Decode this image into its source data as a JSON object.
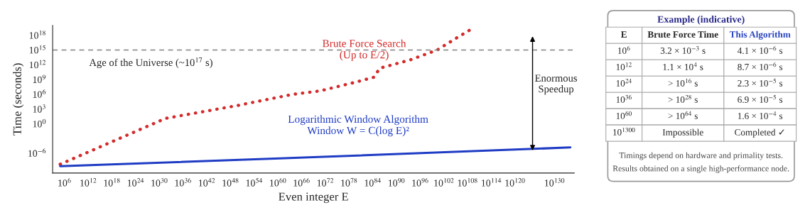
{
  "chart_data": [
    {
      "type": "line",
      "xlabel": "Even integer E",
      "ylabel": "Time (seconds)",
      "log": "xy",
      "grid": false,
      "legend": false,
      "line_style": "solid",
      "marker": "none",
      "xlim": [
        1000.0,
        1e+135
      ],
      "ylim": [
        1e-10,
        1e+20
      ],
      "xticks": [
        {
          "value": 1000000.0,
          "label": "10$^{6}$"
        },
        {
          "value": 1000000000000.0,
          "label": "10$^{12}$"
        },
        {
          "value": 1e+18,
          "label": "10$^{18}$"
        },
        {
          "value": 1e+24,
          "label": "10$^{24}$"
        },
        {
          "value": 1e+30,
          "label": "10$^{30}$"
        },
        {
          "value": 1e+36,
          "label": "10$^{36}$"
        },
        {
          "value": 1e+42,
          "label": "10$^{42}$"
        },
        {
          "value": 1e+48,
          "label": "10$^{48}$"
        },
        {
          "value": 1e+54,
          "label": "10$^{54}$"
        },
        {
          "value": 1e+60,
          "label": "10$^{60}$"
        },
        {
          "value": 1e+66,
          "label": "10$^{66}$"
        },
        {
          "value": 1e+72,
          "label": "10$^{72}$"
        },
        {
          "value": 1e+78,
          "label": "10$^{78}$"
        },
        {
          "value": 1e+84,
          "label": "10$^{84}$"
        },
        {
          "value": 1e+90,
          "label": "10$^{90}$"
        },
        {
          "value": 1e+96,
          "label": "10$^{96}$"
        },
        {
          "value": 1e+102,
          "label": "10$^{102}$"
        },
        {
          "value": 1e+108,
          "label": "10$^{108}$"
        },
        {
          "value": 1e+114,
          "label": "10$^{114}$"
        },
        {
          "value": 1e+120,
          "label": "10$^{120}$"
        },
        {
          "value": 1e+130,
          "label": "10$^{130}$"
        }
      ],
      "yticks": [
        {
          "value": 1e-06,
          "label": "10$^{−6}$"
        },
        {
          "value": 1,
          "label": "10$^{0}$"
        },
        {
          "value": 1000.0,
          "label": "10$^{3}$"
        },
        {
          "value": 1000000.0,
          "label": "10$^{6}$"
        },
        {
          "value": 1000000000.0,
          "label": "10$^{9}$"
        },
        {
          "value": 1000000000000.0,
          "label": "10$^{12}$"
        },
        {
          "value": 1000000000000000.0,
          "label": "10$^{15}$"
        },
        {
          "value": 1e+18,
          "label": "10$^{18}$"
        }
      ],
      "ref_lines": [
        {
          "axis": "y",
          "value": 1000000000000000.0,
          "label": "Age of the Universe (~10$^{17}$ s)",
          "color": "#808080",
          "line_style": "dashed"
        }
      ],
      "annotations": [
        "Enormous\nSpeedup"
      ],
      "series": [
        {
          "name": "Brute Force Search\n(Up to E/2)",
          "color": "#d42a2a",
          "line_style": "dotted",
          "x": [
            80000.0,
            4e+31,
            4e+49,
            6e+63,
            5e+70,
            5e+79,
            2e+84,
            6e+85,
            3e+93,
            2e+100,
            8e+104,
            2e+109
          ],
          "values": [
            6e-09,
            13.0,
            5000.0,
            1000000.0,
            5000000.0,
            300000000.0,
            3000000000.0,
            200000000000.0,
            10000000000000.0,
            1000000000000000.0,
            2e+17,
            2.5e+19
          ]
        },
        {
          "name": "Logarithmic Window Algorithm\nWindow W = C(log E)²",
          "color": "#1f3cc4",
          "x": [
            80000.0,
            5e+61,
            1e+134
          ],
          "values": [
            2.5e-09,
            1e-07,
            1.6e-05
          ]
        }
      ]
    },
    {
      "type": "other",
      "title": "Example (indicative)",
      "categories": [
        "E",
        "Brute Force Time",
        "This Algorithm"
      ],
      "cell_labels": [
        [
          "10$^{6}$",
          "3.2 × 10$^{−3}$ s",
          "4.1 × 10$^{−6}$ s"
        ],
        [
          "10$^{12}$",
          "1.1 × 10$^{4}$ s",
          "8.7 × 10$^{−6}$ s"
        ],
        [
          "10$^{24}$",
          "> 10$^{16}$ s",
          "2.3 × 10$^{−5}$ s"
        ],
        [
          "10$^{36}$",
          "> 10$^{28}$ s",
          "6.9 × 10$^{−5}$ s"
        ],
        [
          "10$^{60}$",
          "> 10$^{64}$ s",
          "1.6 × 10$^{−4}$ s"
        ],
        [
          "10$^{1300}$",
          "Impossible",
          "Completed ✓"
        ]
      ],
      "annotations": [
        "Timings depend on hardware and primality tests.",
        "Results obtained on a single high-performance node."
      ]
    }
  ]
}
